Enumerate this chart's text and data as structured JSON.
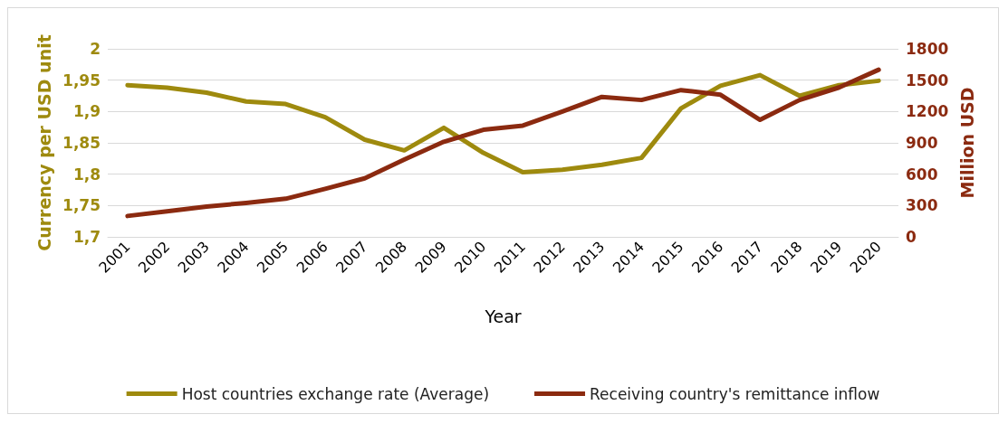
{
  "chart_data": {
    "type": "line",
    "xlabel": "Year",
    "ylabel": "Currency per USD unit",
    "y2label": "Million USD",
    "categories": [
      "2001",
      "2002",
      "2003",
      "2004",
      "2005",
      "2006",
      "2007",
      "2008",
      "2009",
      "2010",
      "2011",
      "2012",
      "2013",
      "2014",
      "2015",
      "2016",
      "2017",
      "2018",
      "2019",
      "2020"
    ],
    "series": [
      {
        "name": "Host countries exchange rate (Average)",
        "color": "#9e8a0e",
        "values": [
          1.942,
          1.938,
          1.93,
          1.916,
          1.912,
          1.891,
          1.855,
          1.838,
          1.874,
          1.834,
          1.803,
          1.807,
          1.815,
          1.826,
          1.905,
          1.941,
          1.958,
          1.925,
          1.942,
          1.949
        ]
      },
      {
        "name": "Receiving country's remittance inflow",
        "color": "#8b2a10",
        "axis": "y2",
        "values": [
          200,
          245,
          290,
          325,
          365,
          460,
          560,
          740,
          910,
          1025,
          1065,
          1200,
          1340,
          1310,
          1405,
          1360,
          1120,
          1310,
          1430,
          1600
        ]
      }
    ],
    "ylim": [
      1.7,
      2
    ],
    "yticks": [
      {
        "value": 1.7,
        "label": "1,7"
      },
      {
        "value": 1.75,
        "label": "1,75"
      },
      {
        "value": 1.8,
        "label": "1,8"
      },
      {
        "value": 1.85,
        "label": "1,85"
      },
      {
        "value": 1.9,
        "label": "1,9"
      },
      {
        "value": 1.95,
        "label": "1,95"
      },
      2
    ],
    "y2lim": [
      0,
      1800
    ],
    "y2ticks": [
      0,
      300,
      600,
      900,
      1200,
      1500,
      1800
    ],
    "grid": "y",
    "legend": "bottom",
    "marker": "none",
    "line_style": "solid"
  }
}
